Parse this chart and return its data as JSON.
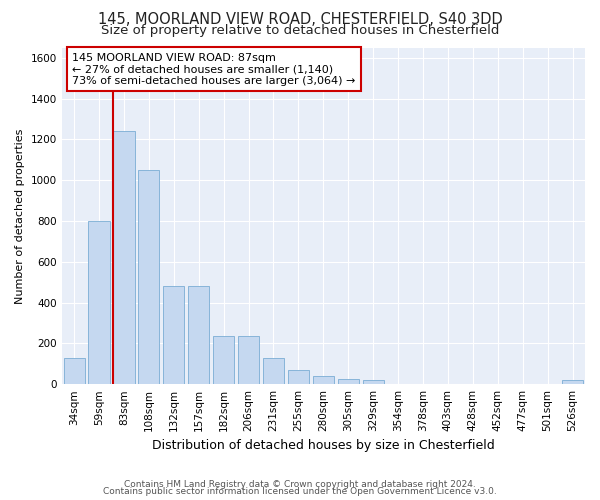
{
  "title1": "145, MOORLAND VIEW ROAD, CHESTERFIELD, S40 3DD",
  "title2": "Size of property relative to detached houses in Chesterfield",
  "xlabel": "Distribution of detached houses by size in Chesterfield",
  "ylabel": "Number of detached properties",
  "categories": [
    "34sqm",
    "59sqm",
    "83sqm",
    "108sqm",
    "132sqm",
    "157sqm",
    "182sqm",
    "206sqm",
    "231sqm",
    "255sqm",
    "280sqm",
    "305sqm",
    "329sqm",
    "354sqm",
    "378sqm",
    "403sqm",
    "428sqm",
    "452sqm",
    "477sqm",
    "501sqm",
    "526sqm"
  ],
  "values": [
    130,
    800,
    1240,
    1050,
    480,
    480,
    235,
    235,
    130,
    70,
    40,
    25,
    20,
    0,
    0,
    0,
    0,
    0,
    0,
    0,
    20
  ],
  "bar_color": "#c5d8f0",
  "bar_edge_color": "#7aadd4",
  "red_line_color": "#cc0000",
  "annotation_line1": "145 MOORLAND VIEW ROAD: 87sqm",
  "annotation_line2": "← 27% of detached houses are smaller (1,140)",
  "annotation_line3": "73% of semi-detached houses are larger (3,064) →",
  "annotation_box_color": "#cc0000",
  "ylim": [
    0,
    1650
  ],
  "yticks": [
    0,
    200,
    400,
    600,
    800,
    1000,
    1200,
    1400,
    1600
  ],
  "footer1": "Contains HM Land Registry data © Crown copyright and database right 2024.",
  "footer2": "Contains public sector information licensed under the Open Government Licence v3.0.",
  "fig_bg_color": "#ffffff",
  "plot_bg_color": "#e8eef8",
  "grid_color": "#ffffff",
  "title1_fontsize": 10.5,
  "title2_fontsize": 9.5,
  "xlabel_fontsize": 9,
  "ylabel_fontsize": 8,
  "tick_fontsize": 7.5,
  "footer_fontsize": 6.5,
  "ann_fontsize": 8
}
